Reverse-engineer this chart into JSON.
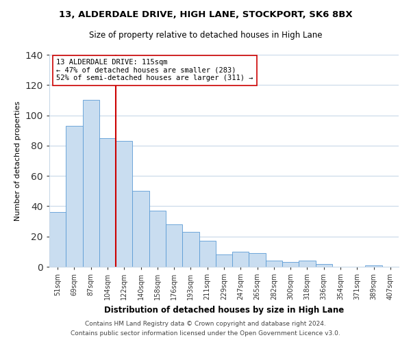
{
  "title": "13, ALDERDALE DRIVE, HIGH LANE, STOCKPORT, SK6 8BX",
  "subtitle": "Size of property relative to detached houses in High Lane",
  "xlabel": "Distribution of detached houses by size in High Lane",
  "ylabel": "Number of detached properties",
  "bar_labels": [
    "51sqm",
    "69sqm",
    "87sqm",
    "104sqm",
    "122sqm",
    "140sqm",
    "158sqm",
    "176sqm",
    "193sqm",
    "211sqm",
    "229sqm",
    "247sqm",
    "265sqm",
    "282sqm",
    "300sqm",
    "318sqm",
    "336sqm",
    "354sqm",
    "371sqm",
    "389sqm",
    "407sqm"
  ],
  "bar_values": [
    36,
    93,
    110,
    85,
    83,
    50,
    37,
    28,
    23,
    17,
    8,
    10,
    9,
    4,
    3,
    4,
    2,
    0,
    0,
    1,
    0
  ],
  "bar_color": "#c9ddf0",
  "bar_edge_color": "#5b9bd5",
  "vline_x": 4,
  "vline_color": "#cc0000",
  "annotation_line1": "13 ALDERDALE DRIVE: 115sqm",
  "annotation_line2": "← 47% of detached houses are smaller (283)",
  "annotation_line3": "52% of semi-detached houses are larger (311) →",
  "annotation_box_color": "#ffffff",
  "annotation_box_edge": "#cc0000",
  "ylim": [
    0,
    140
  ],
  "yticks": [
    0,
    20,
    40,
    60,
    80,
    100,
    120,
    140
  ],
  "footer_line1": "Contains HM Land Registry data © Crown copyright and database right 2024.",
  "footer_line2": "Contains public sector information licensed under the Open Government Licence v3.0.",
  "bg_color": "#ffffff",
  "grid_color": "#c8d8e8"
}
